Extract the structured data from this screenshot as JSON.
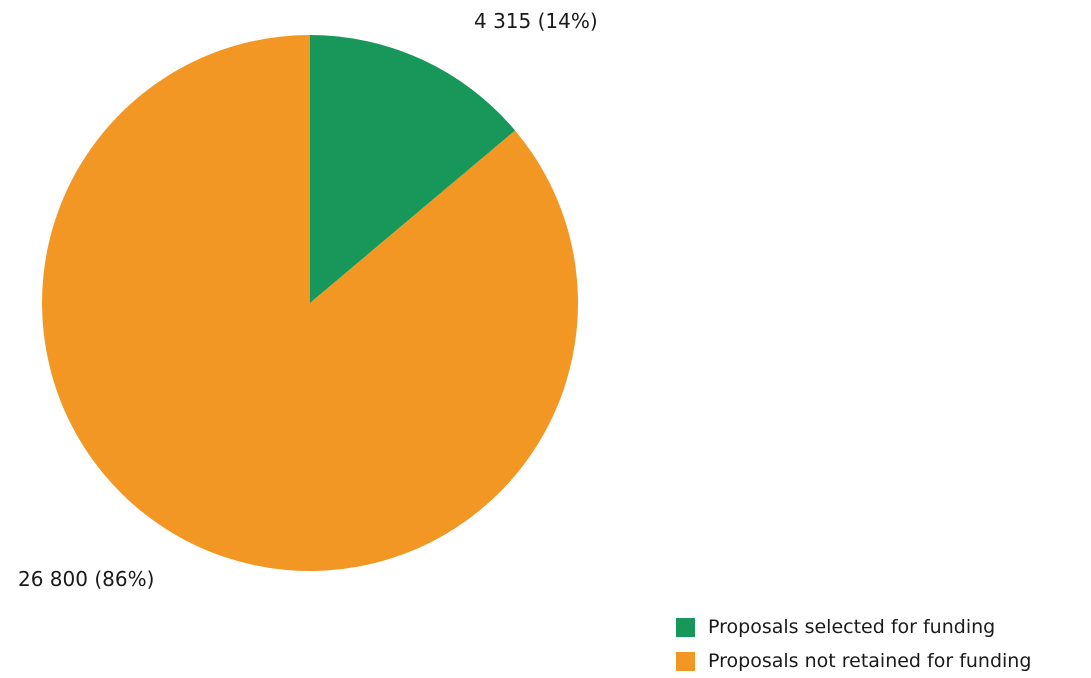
{
  "chart_data": {
    "type": "pie",
    "title": "",
    "slices": [
      {
        "name": "Proposals selected for funding",
        "value": 4315,
        "percent": 14,
        "label": "4 315 (14%)",
        "color": "#17985a"
      },
      {
        "name": "Proposals not retained for funding",
        "value": 26800,
        "percent": 86,
        "label": "26 800 (86%)",
        "color": "#f29624"
      }
    ],
    "start_angle": "12 o'clock",
    "direction": "clockwise",
    "legend_position": "bottom-right"
  },
  "legend": {
    "items": [
      {
        "label": "Proposals selected for funding",
        "color": "#17985a"
      },
      {
        "label": "Proposals not retained for funding",
        "color": "#f29624"
      }
    ]
  }
}
